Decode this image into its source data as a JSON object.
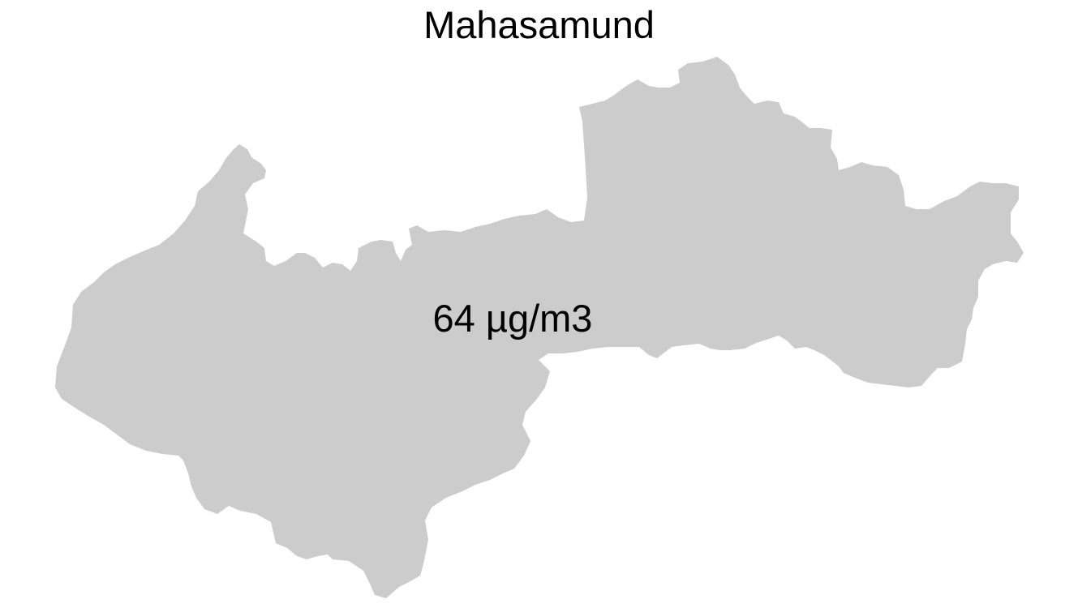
{
  "map": {
    "title": "Mahasamund",
    "region_label": "64 µg/m3",
    "region_fill": "#cccccc",
    "background": "#ffffff"
  }
}
